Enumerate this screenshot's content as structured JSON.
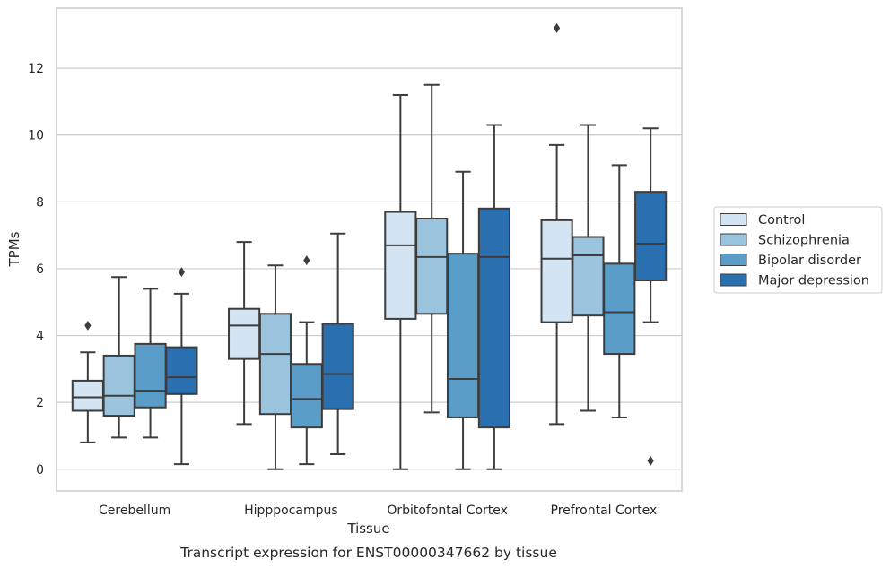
{
  "chart_data": {
    "type": "box",
    "title": "",
    "caption": "Transcript expression for ENST00000347662 by tissue",
    "xlabel": "Tissue",
    "ylabel": "TPMs",
    "ylim": [
      -0.65,
      13.8
    ],
    "yticks": [
      0,
      2,
      4,
      6,
      8,
      10,
      12
    ],
    "grid": "horizontal",
    "legend_position": "right",
    "categories": [
      "Cerebellum",
      "Hipppocampus",
      "Orbitofontal Cortex",
      "Prefrontal Cortex"
    ],
    "series": [
      {
        "name": "Control",
        "color": "#d3e4f3",
        "boxes": [
          {
            "whisker_low": 0.8,
            "q1": 1.75,
            "median": 2.15,
            "q3": 2.65,
            "whisker_high": 3.5,
            "outliers": [
              4.3
            ]
          },
          {
            "whisker_low": 1.35,
            "q1": 3.3,
            "median": 4.3,
            "q3": 4.8,
            "whisker_high": 6.8,
            "outliers": []
          },
          {
            "whisker_low": 0.0,
            "q1": 4.5,
            "median": 6.7,
            "q3": 7.7,
            "whisker_high": 11.2,
            "outliers": []
          },
          {
            "whisker_low": 1.35,
            "q1": 4.4,
            "median": 6.3,
            "q3": 7.45,
            "whisker_high": 9.7,
            "outliers": [
              13.2
            ]
          }
        ]
      },
      {
        "name": "Schizophrenia",
        "color": "#9ac3de",
        "boxes": [
          {
            "whisker_low": 0.95,
            "q1": 1.6,
            "median": 2.2,
            "q3": 3.4,
            "whisker_high": 5.75,
            "outliers": []
          },
          {
            "whisker_low": 0.0,
            "q1": 1.65,
            "median": 3.45,
            "q3": 4.65,
            "whisker_high": 6.1,
            "outliers": []
          },
          {
            "whisker_low": 1.7,
            "q1": 4.65,
            "median": 6.35,
            "q3": 7.5,
            "whisker_high": 11.5,
            "outliers": []
          },
          {
            "whisker_low": 1.75,
            "q1": 4.6,
            "median": 6.4,
            "q3": 6.95,
            "whisker_high": 10.3,
            "outliers": []
          }
        ]
      },
      {
        "name": "Bipolar disorder",
        "color": "#5b9dc9",
        "boxes": [
          {
            "whisker_low": 0.95,
            "q1": 1.85,
            "median": 2.35,
            "q3": 3.75,
            "whisker_high": 5.4,
            "outliers": []
          },
          {
            "whisker_low": 0.15,
            "q1": 1.25,
            "median": 2.1,
            "q3": 3.15,
            "whisker_high": 4.4,
            "outliers": [
              6.25
            ]
          },
          {
            "whisker_low": 0.0,
            "q1": 1.55,
            "median": 2.7,
            "q3": 6.45,
            "whisker_high": 8.9,
            "outliers": []
          },
          {
            "whisker_low": 1.55,
            "q1": 3.45,
            "median": 4.7,
            "q3": 6.15,
            "whisker_high": 9.1,
            "outliers": []
          }
        ]
      },
      {
        "name": "Major depression",
        "color": "#2a6fb0",
        "boxes": [
          {
            "whisker_low": 0.15,
            "q1": 2.25,
            "median": 2.75,
            "q3": 3.65,
            "whisker_high": 5.25,
            "outliers": [
              5.9
            ]
          },
          {
            "whisker_low": 0.45,
            "q1": 1.8,
            "median": 2.85,
            "q3": 4.35,
            "whisker_high": 7.05,
            "outliers": []
          },
          {
            "whisker_low": 0.0,
            "q1": 1.25,
            "median": 6.35,
            "q3": 7.8,
            "whisker_high": 10.3,
            "outliers": []
          },
          {
            "whisker_low": 4.4,
            "q1": 5.65,
            "median": 6.75,
            "q3": 8.3,
            "whisker_high": 10.2,
            "outliers": [
              0.25
            ]
          }
        ]
      }
    ]
  }
}
